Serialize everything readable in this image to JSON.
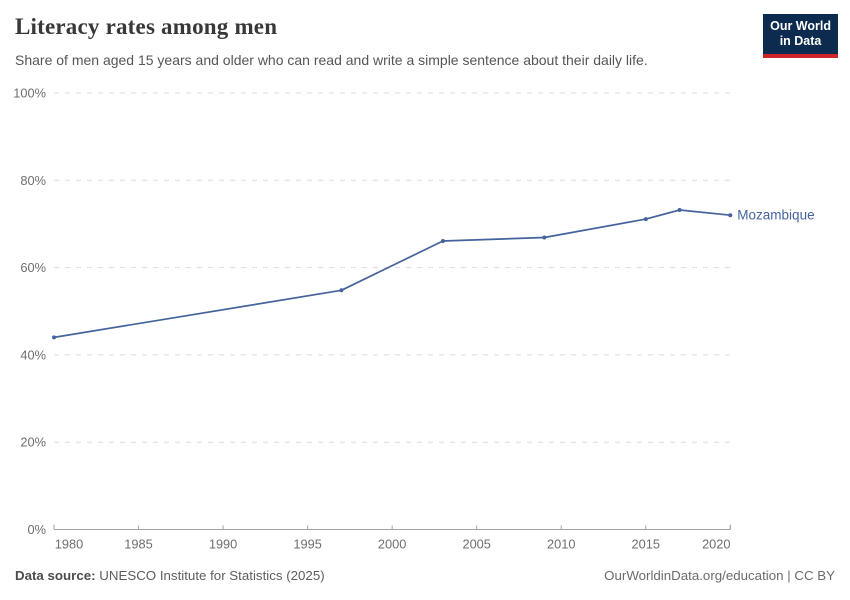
{
  "header": {
    "title": "Literacy rates among men",
    "subtitle": "Share of men aged 15 years and older who can read and write a simple sentence about their daily life.",
    "logo": {
      "line1": "Our World",
      "line2": "in Data"
    }
  },
  "footer": {
    "source_label": "Data source:",
    "source_text": " UNESCO Institute for Statistics (2025)",
    "credit": "OurWorldinData.org/education | CC BY"
  },
  "colors": {
    "series_blue": "#44639c",
    "gridline": "#dcdcdc",
    "axis_line": "#a3a3a3",
    "tick_label": "#6e6e6e",
    "logo_navy": "#0d2b4e",
    "logo_red": "#cf2229"
  },
  "chart_data": {
    "type": "line",
    "title": "Literacy rates among men",
    "subtitle": "Share of men aged 15 years and older who can read and write a simple sentence about their daily life.",
    "xlabel": "",
    "ylabel": "",
    "xlim": [
      1980,
      2020
    ],
    "ylim": [
      0,
      100
    ],
    "x_ticks": [
      1980,
      1985,
      1990,
      1995,
      2000,
      2005,
      2010,
      2015,
      2020
    ],
    "y_ticks": [
      0,
      20,
      40,
      60,
      80,
      100
    ],
    "y_tick_suffix": "%",
    "grid": "horizontal-dashed",
    "legend_position": "end-of-line",
    "series": [
      {
        "name": "Mozambique",
        "color": "#44639c",
        "x": [
          1980,
          1997,
          2003,
          2009,
          2015,
          2017,
          2020
        ],
        "values": [
          44.0,
          54.8,
          66.1,
          66.9,
          71.1,
          73.2,
          72.0
        ]
      }
    ]
  }
}
